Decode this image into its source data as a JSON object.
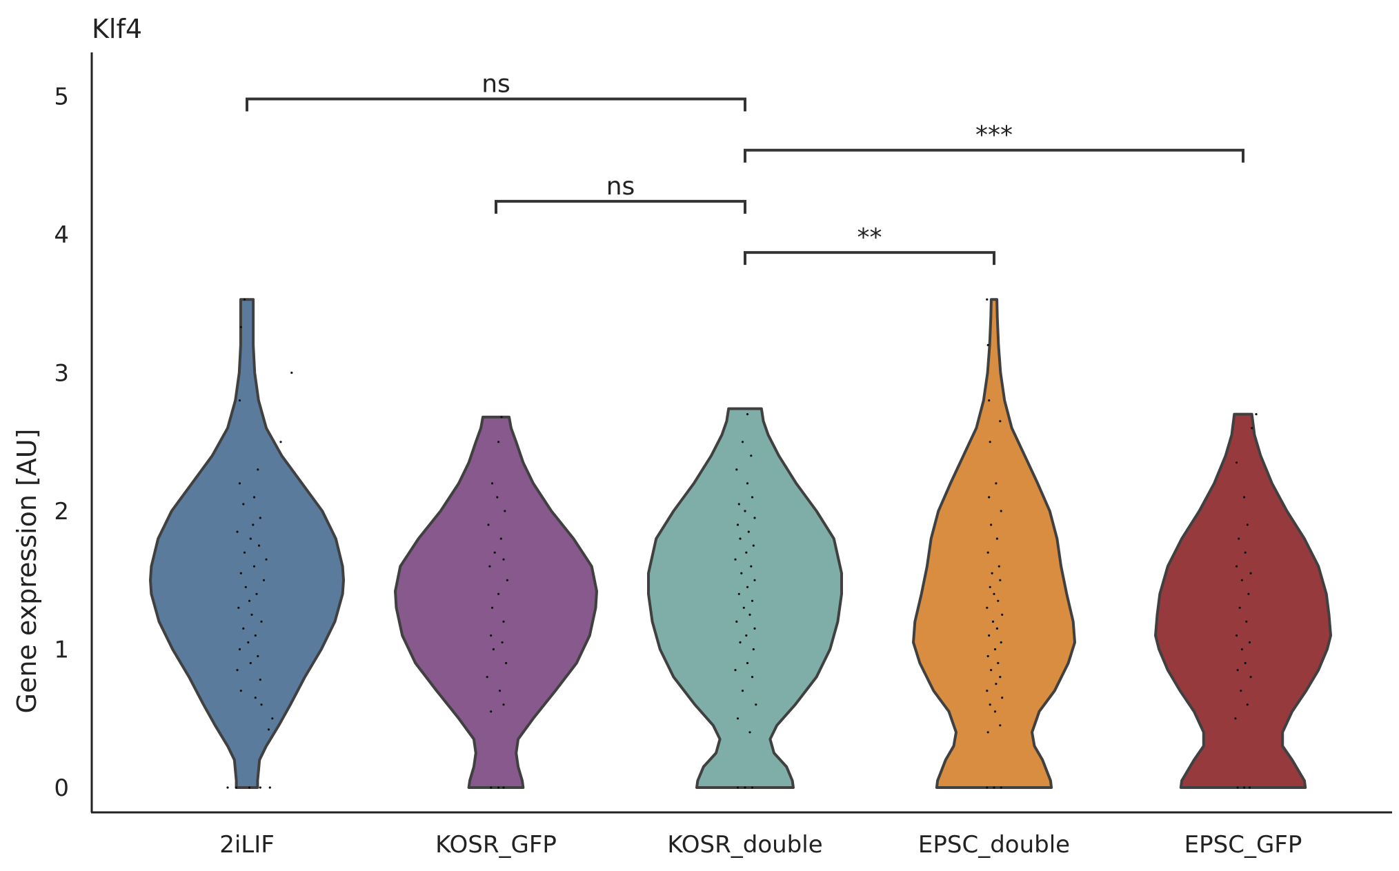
{
  "chart_data": {
    "type": "violin",
    "title": "Klf4",
    "xlabel": "",
    "ylabel": "Gene expression [AU]",
    "ylim": [
      -0.18,
      5.3
    ],
    "yticks": [
      0,
      1,
      2,
      3,
      4,
      5
    ],
    "grid": false,
    "legend": "none",
    "categories": [
      "2iLIF",
      "KOSR_GFP",
      "KOSR_double",
      "EPSC_double",
      "EPSC_GFP"
    ],
    "colors": [
      "#5a7b9c",
      "#87598d",
      "#7faea8",
      "#d88d40",
      "#963a3e"
    ],
    "outline_color": "#404040",
    "violins": [
      {
        "name": "2iLIF",
        "max": 3.53,
        "profile": [
          [
            0.0,
            0.11
          ],
          [
            0.05,
            0.11
          ],
          [
            0.2,
            0.13
          ],
          [
            0.3,
            0.2
          ],
          [
            0.45,
            0.33
          ],
          [
            0.6,
            0.45
          ],
          [
            0.8,
            0.6
          ],
          [
            1.0,
            0.77
          ],
          [
            1.2,
            0.91
          ],
          [
            1.4,
            0.99
          ],
          [
            1.5,
            1.0
          ],
          [
            1.6,
            0.99
          ],
          [
            1.8,
            0.92
          ],
          [
            2.0,
            0.78
          ],
          [
            2.2,
            0.57
          ],
          [
            2.4,
            0.36
          ],
          [
            2.6,
            0.2
          ],
          [
            2.8,
            0.12
          ],
          [
            3.0,
            0.08
          ],
          [
            3.2,
            0.065
          ],
          [
            3.4,
            0.065
          ],
          [
            3.53,
            0.065
          ]
        ],
        "points": [
          [
            0,
            -0.8
          ],
          [
            0,
            -0.45
          ],
          [
            0,
            0.1
          ],
          [
            0,
            0.55
          ],
          [
            0,
            0.95
          ],
          [
            0.42,
            0.9
          ],
          [
            0.5,
            1.05
          ],
          [
            0.6,
            0.6
          ],
          [
            0.65,
            0.35
          ],
          [
            0.7,
            -0.25
          ],
          [
            0.78,
            0.55
          ],
          [
            0.85,
            -0.4
          ],
          [
            0.9,
            0.15
          ],
          [
            0.95,
            0.45
          ],
          [
            1.0,
            -0.3
          ],
          [
            1.05,
            0.05
          ],
          [
            1.1,
            0.35
          ],
          [
            1.15,
            -0.15
          ],
          [
            1.2,
            0.6
          ],
          [
            1.25,
            0.2
          ],
          [
            1.3,
            -0.35
          ],
          [
            1.35,
            0.1
          ],
          [
            1.4,
            0.4
          ],
          [
            1.45,
            -0.05
          ],
          [
            1.5,
            0.7
          ],
          [
            1.55,
            -0.25
          ],
          [
            1.6,
            0.3
          ],
          [
            1.65,
            0.8
          ],
          [
            1.7,
            -0.1
          ],
          [
            1.75,
            0.5
          ],
          [
            1.8,
            0.15
          ],
          [
            1.85,
            -0.4
          ],
          [
            1.9,
            0.25
          ],
          [
            1.95,
            0.55
          ],
          [
            2.05,
            -0.15
          ],
          [
            2.1,
            0.3
          ],
          [
            2.2,
            -0.3
          ],
          [
            2.3,
            0.45
          ],
          [
            2.5,
            1.4
          ],
          [
            2.8,
            -0.3
          ],
          [
            3.0,
            1.85
          ],
          [
            3.33,
            -0.25
          ],
          [
            3.53,
            -0.1
          ]
        ]
      },
      {
        "name": "KOSR_GFP",
        "max": 2.68,
        "profile": [
          [
            0.0,
            0.27
          ],
          [
            0.05,
            0.26
          ],
          [
            0.15,
            0.22
          ],
          [
            0.25,
            0.2
          ],
          [
            0.35,
            0.22
          ],
          [
            0.5,
            0.37
          ],
          [
            0.7,
            0.59
          ],
          [
            0.9,
            0.8
          ],
          [
            1.1,
            0.93
          ],
          [
            1.3,
            0.99
          ],
          [
            1.42,
            1.0
          ],
          [
            1.6,
            0.95
          ],
          [
            1.8,
            0.77
          ],
          [
            2.0,
            0.55
          ],
          [
            2.2,
            0.37
          ],
          [
            2.35,
            0.27
          ],
          [
            2.5,
            0.2
          ],
          [
            2.6,
            0.15
          ],
          [
            2.68,
            0.13
          ]
        ],
        "points": [
          [
            0,
            -0.2
          ],
          [
            0,
            0.1
          ],
          [
            0,
            0.3
          ],
          [
            0.55,
            -0.2
          ],
          [
            0.6,
            0.3
          ],
          [
            0.7,
            0.15
          ],
          [
            0.8,
            -0.35
          ],
          [
            0.9,
            0.4
          ],
          [
            1.0,
            -0.1
          ],
          [
            1.05,
            0.25
          ],
          [
            1.1,
            -0.2
          ],
          [
            1.2,
            0.3
          ],
          [
            1.3,
            -0.15
          ],
          [
            1.4,
            0.1
          ],
          [
            1.5,
            0.45
          ],
          [
            1.6,
            -0.25
          ],
          [
            1.65,
            0.3
          ],
          [
            1.7,
            -0.05
          ],
          [
            1.8,
            0.2
          ],
          [
            1.9,
            -0.3
          ],
          [
            2.0,
            0.35
          ],
          [
            2.1,
            0.05
          ],
          [
            2.2,
            -0.15
          ],
          [
            2.5,
            0.1
          ],
          [
            2.68,
            0.22
          ]
        ]
      },
      {
        "name": "KOSR_double",
        "max": 2.74,
        "profile": [
          [
            0.0,
            0.5
          ],
          [
            0.05,
            0.49
          ],
          [
            0.15,
            0.43
          ],
          [
            0.25,
            0.3
          ],
          [
            0.35,
            0.26
          ],
          [
            0.45,
            0.33
          ],
          [
            0.6,
            0.52
          ],
          [
            0.8,
            0.74
          ],
          [
            1.0,
            0.88
          ],
          [
            1.2,
            0.96
          ],
          [
            1.4,
            1.0
          ],
          [
            1.55,
            1.0
          ],
          [
            1.8,
            0.92
          ],
          [
            2.0,
            0.74
          ],
          [
            2.2,
            0.53
          ],
          [
            2.4,
            0.35
          ],
          [
            2.55,
            0.24
          ],
          [
            2.65,
            0.19
          ],
          [
            2.74,
            0.17
          ]
        ],
        "points": [
          [
            0,
            -0.3
          ],
          [
            0,
            0.0
          ],
          [
            0,
            0.3
          ],
          [
            0.4,
            0.2
          ],
          [
            0.5,
            -0.3
          ],
          [
            0.6,
            0.45
          ],
          [
            0.7,
            -0.1
          ],
          [
            0.8,
            0.3
          ],
          [
            0.85,
            -0.4
          ],
          [
            0.9,
            0.1
          ],
          [
            1.0,
            0.35
          ],
          [
            1.05,
            -0.2
          ],
          [
            1.1,
            0.05
          ],
          [
            1.15,
            0.4
          ],
          [
            1.2,
            -0.35
          ],
          [
            1.25,
            0.2
          ],
          [
            1.3,
            -0.05
          ],
          [
            1.35,
            0.3
          ],
          [
            1.4,
            -0.25
          ],
          [
            1.45,
            0.1
          ],
          [
            1.5,
            0.4
          ],
          [
            1.55,
            -0.15
          ],
          [
            1.6,
            0.25
          ],
          [
            1.65,
            -0.4
          ],
          [
            1.7,
            0.05
          ],
          [
            1.75,
            0.35
          ],
          [
            1.8,
            -0.2
          ],
          [
            1.85,
            0.15
          ],
          [
            1.9,
            -0.3
          ],
          [
            1.95,
            0.4
          ],
          [
            2.0,
            0.0
          ],
          [
            2.05,
            -0.25
          ],
          [
            2.1,
            0.3
          ],
          [
            2.2,
            0.1
          ],
          [
            2.3,
            -0.35
          ],
          [
            2.4,
            0.25
          ],
          [
            2.5,
            -0.1
          ],
          [
            2.7,
            0.1
          ]
        ]
      },
      {
        "name": "EPSC_double",
        "max": 3.53,
        "profile": [
          [
            0.0,
            0.71
          ],
          [
            0.05,
            0.7
          ],
          [
            0.2,
            0.6
          ],
          [
            0.3,
            0.5
          ],
          [
            0.4,
            0.47
          ],
          [
            0.55,
            0.56
          ],
          [
            0.7,
            0.75
          ],
          [
            0.9,
            0.92
          ],
          [
            1.05,
            1.0
          ],
          [
            1.2,
            0.98
          ],
          [
            1.4,
            0.9
          ],
          [
            1.6,
            0.83
          ],
          [
            1.8,
            0.78
          ],
          [
            2.0,
            0.69
          ],
          [
            2.2,
            0.54
          ],
          [
            2.4,
            0.38
          ],
          [
            2.6,
            0.22
          ],
          [
            2.8,
            0.13
          ],
          [
            3.0,
            0.08
          ],
          [
            3.2,
            0.055
          ],
          [
            3.4,
            0.04
          ],
          [
            3.53,
            0.035
          ]
        ],
        "points": [
          [
            0,
            -0.35
          ],
          [
            0,
            0.0
          ],
          [
            0,
            0.35
          ],
          [
            0.4,
            -0.3
          ],
          [
            0.45,
            0.3
          ],
          [
            0.55,
            0.05
          ],
          [
            0.6,
            -0.2
          ],
          [
            0.65,
            0.4
          ],
          [
            0.7,
            -0.35
          ],
          [
            0.75,
            0.1
          ],
          [
            0.8,
            0.3
          ],
          [
            0.85,
            -0.15
          ],
          [
            0.9,
            0.2
          ],
          [
            0.95,
            -0.3
          ],
          [
            1.0,
            0.05
          ],
          [
            1.05,
            0.35
          ],
          [
            1.1,
            -0.25
          ],
          [
            1.15,
            0.15
          ],
          [
            1.2,
            -0.05
          ],
          [
            1.25,
            0.4
          ],
          [
            1.3,
            -0.35
          ],
          [
            1.35,
            0.2
          ],
          [
            1.4,
            0.0
          ],
          [
            1.45,
            -0.2
          ],
          [
            1.5,
            0.3
          ],
          [
            1.55,
            -0.1
          ],
          [
            1.6,
            0.25
          ],
          [
            1.7,
            -0.3
          ],
          [
            1.8,
            0.15
          ],
          [
            1.9,
            -0.15
          ],
          [
            2.0,
            0.35
          ],
          [
            2.1,
            -0.25
          ],
          [
            2.2,
            0.1
          ],
          [
            2.5,
            -0.2
          ],
          [
            2.65,
            0.3
          ],
          [
            2.8,
            -0.25
          ],
          [
            3.2,
            -0.3
          ],
          [
            3.53,
            -0.35
          ]
        ]
      },
      {
        "name": "EPSC_GFP",
        "max": 2.7,
        "profile": [
          [
            0.0,
            0.71
          ],
          [
            0.05,
            0.7
          ],
          [
            0.2,
            0.56
          ],
          [
            0.3,
            0.45
          ],
          [
            0.4,
            0.45
          ],
          [
            0.55,
            0.56
          ],
          [
            0.7,
            0.72
          ],
          [
            0.85,
            0.86
          ],
          [
            1.0,
            0.96
          ],
          [
            1.1,
            1.0
          ],
          [
            1.25,
            0.98
          ],
          [
            1.4,
            0.95
          ],
          [
            1.6,
            0.86
          ],
          [
            1.8,
            0.7
          ],
          [
            2.0,
            0.5
          ],
          [
            2.2,
            0.33
          ],
          [
            2.4,
            0.2
          ],
          [
            2.55,
            0.13
          ],
          [
            2.7,
            0.1
          ]
        ],
        "points": [
          [
            0,
            -0.25
          ],
          [
            0,
            0.05
          ],
          [
            0,
            0.3
          ],
          [
            0.5,
            -0.35
          ],
          [
            0.6,
            0.2
          ],
          [
            0.7,
            -0.1
          ],
          [
            0.8,
            0.35
          ],
          [
            0.85,
            -0.25
          ],
          [
            0.9,
            0.1
          ],
          [
            1.0,
            -0.05
          ],
          [
            1.05,
            0.3
          ],
          [
            1.1,
            -0.3
          ],
          [
            1.2,
            0.15
          ],
          [
            1.3,
            -0.15
          ],
          [
            1.4,
            0.25
          ],
          [
            1.5,
            -0.05
          ],
          [
            1.55,
            0.35
          ],
          [
            1.6,
            -0.3
          ],
          [
            1.7,
            0.1
          ],
          [
            1.8,
            -0.2
          ],
          [
            1.9,
            0.2
          ],
          [
            2.1,
            0.05
          ],
          [
            2.35,
            -0.3
          ],
          [
            2.6,
            0.4
          ],
          [
            2.7,
            0.6
          ]
        ]
      }
    ],
    "significance": [
      {
        "from": "2iLIF",
        "to": "KOSR_double",
        "y": 4.98,
        "label": "ns"
      },
      {
        "from": "KOSR_double",
        "to": "EPSC_GFP",
        "y": 4.61,
        "label": "***"
      },
      {
        "from": "KOSR_GFP",
        "to": "KOSR_double",
        "y": 4.24,
        "label": "ns"
      },
      {
        "from": "KOSR_double",
        "to": "EPSC_double",
        "y": 3.87,
        "label": "**"
      }
    ]
  }
}
